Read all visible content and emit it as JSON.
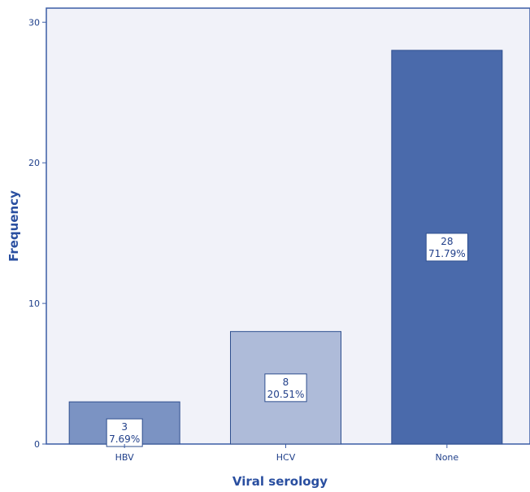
{
  "chart_data": {
    "type": "bar",
    "title": "",
    "xlabel": "Viral serology",
    "ylabel": "Frequency",
    "categories": [
      "HBV",
      "HCV",
      "None"
    ],
    "values": [
      3,
      8,
      28
    ],
    "data_labels": [
      {
        "count": "3",
        "percent": "7.69%"
      },
      {
        "count": "8",
        "percent": "20.51%"
      },
      {
        "count": "28",
        "percent": "71.79%"
      }
    ],
    "ylim": [
      0,
      31
    ],
    "yticks": [
      0,
      10,
      20,
      30
    ],
    "grid": false,
    "legend": "none"
  },
  "colors": {
    "plot_background": "#f1f2f9",
    "frame": "#3b5da6",
    "bars": [
      "#7b93c3",
      "#aebbd9",
      "#4a6aab"
    ],
    "bar_edge": "#2f4f8f",
    "text": "#1f3f8a"
  }
}
